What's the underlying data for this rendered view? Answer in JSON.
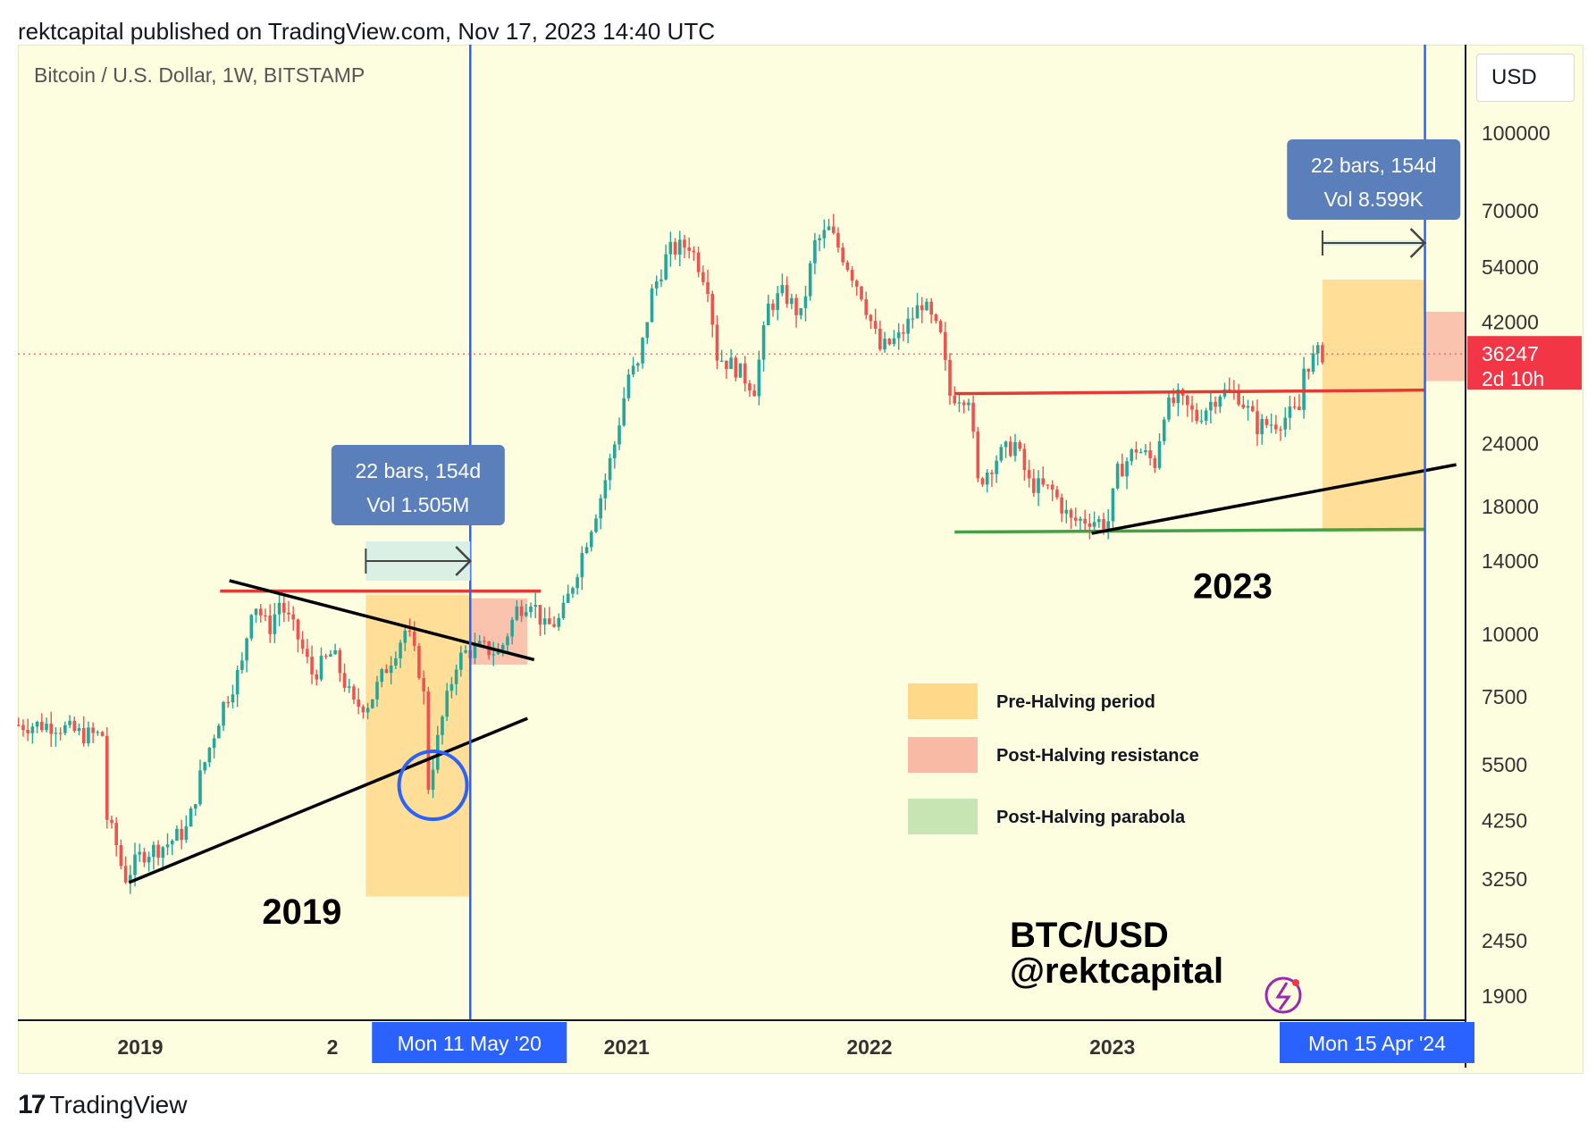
{
  "header": {
    "text": "rektcapital published on TradingView.com, Nov 17, 2023 14:40 UTC"
  },
  "footer": {
    "brand": "TradingView"
  },
  "toolbar": {
    "currency_button": "USD"
  },
  "colors": {
    "background": "#fdfde0",
    "up_candle": "#26a69a",
    "down_candle": "#ef5350",
    "halving_line": "#2962ff",
    "pre_halving": "#ffd88a",
    "post_resistance": "#f8b9a5",
    "post_parabola": "#c6e5b3",
    "resistance_line": "#e53935",
    "support_line": "#43a047",
    "trend_line": "#000000",
    "price_tag": "#f23645",
    "info_box": "#5b7fbb"
  },
  "chart_data": {
    "type": "candlestick",
    "title": "Bitcoin / U.S. Dollar, 1W, BITSTAMP",
    "y_scale": "log",
    "ylim": [
      1700,
      150000
    ],
    "y_ticks": [
      100000,
      70000,
      54000,
      42000,
      24000,
      18000,
      14000,
      10000,
      7500,
      5500,
      4250,
      3250,
      2450,
      1900
    ],
    "x_ticks": [
      "2019",
      "2021",
      "2022",
      "2023"
    ],
    "x_tick_partial": "2",
    "x_range": [
      "2018-07-01",
      "2024-06-15"
    ],
    "current_price": {
      "value": "36247",
      "countdown": "2d 10h",
      "level": 36247
    },
    "halving_markers": [
      {
        "date": "2020-05-11",
        "label": "Mon 11 May '20"
      },
      {
        "date": "2024-04-15",
        "label": "Mon 15 Apr '24"
      }
    ],
    "measure_boxes": [
      {
        "line1": "22 bars, 154d",
        "line2": "Vol 1.505M",
        "from": "2019-12-06",
        "to": "2020-05-11"
      },
      {
        "line1": "22 bars, 154d",
        "line2": "Vol 8.599K",
        "from": "2023-11-13",
        "to": "2024-04-15"
      }
    ],
    "zones": [
      {
        "kind": "pre_halving",
        "from": "2019-12-06",
        "to": "2020-05-11",
        "y_low": 3000,
        "y_high": 12000
      },
      {
        "kind": "post_resistance",
        "from": "2020-05-11",
        "to": "2020-08-05",
        "y_low": 8700,
        "y_high": 11800
      },
      {
        "kind": "pre_halving",
        "from": "2023-11-13",
        "to": "2024-04-15",
        "y_low": 16000,
        "y_high": 51000
      },
      {
        "kind": "post_resistance",
        "from": "2024-04-15",
        "to": "2024-06-15",
        "y_low": 32000,
        "y_high": 44000
      }
    ],
    "lines": [
      {
        "kind": "resistance",
        "from": [
          "2019-05-01",
          12200
        ],
        "to": [
          "2020-08-25",
          12200
        ]
      },
      {
        "kind": "trend",
        "from": [
          "2019-05-15",
          12800
        ],
        "to": [
          "2020-08-15",
          8900
        ]
      },
      {
        "kind": "trend",
        "from": [
          "2018-12-15",
          3200
        ],
        "to": [
          "2020-08-05",
          6800
        ]
      },
      {
        "kind": "resistance",
        "from": [
          "2022-05-09",
          30200
        ],
        "to": [
          "2024-04-15",
          30700
        ]
      },
      {
        "kind": "support",
        "from": [
          "2022-05-09",
          16000
        ],
        "to": [
          "2024-04-15",
          16200
        ]
      },
      {
        "kind": "trend",
        "from": [
          "2022-12-01",
          15900
        ],
        "to": [
          "2024-06-01",
          21800
        ]
      }
    ],
    "circle_marker": {
      "date": "2020-03-16",
      "price": 5000
    },
    "legend": [
      {
        "label": "Pre-Halving period",
        "kind": "pre_halving"
      },
      {
        "label": "Post-Halving resistance",
        "kind": "post_resistance"
      },
      {
        "label": "Post-Halving parabola",
        "kind": "post_parabola"
      }
    ],
    "annotations": [
      {
        "text": "2019",
        "date": "2019-09-01",
        "price": 2650
      },
      {
        "text": "2023",
        "date": "2023-07-01",
        "price": 11800
      }
    ],
    "watermark": {
      "line1": "BTC/USD",
      "line2": "@rektcapital"
    },
    "series_anchors": [
      [
        "2018-07-02",
        6600
      ],
      [
        "2018-09-01",
        6600
      ],
      [
        "2018-10-15",
        6300
      ],
      [
        "2018-11-12",
        6300
      ],
      [
        "2018-11-19",
        4300
      ],
      [
        "2018-12-03",
        3800
      ],
      [
        "2018-12-15",
        3250
      ],
      [
        "2019-01-10",
        3650
      ],
      [
        "2019-02-15",
        3800
      ],
      [
        "2019-03-20",
        4100
      ],
      [
        "2019-04-08",
        5200
      ],
      [
        "2019-05-12",
        7200
      ],
      [
        "2019-06-10",
        8700
      ],
      [
        "2019-06-26",
        11800
      ],
      [
        "2019-07-20",
        10200
      ],
      [
        "2019-08-05",
        11600
      ],
      [
        "2019-09-01",
        9900
      ],
      [
        "2019-09-24",
        8300
      ],
      [
        "2019-10-24",
        9200
      ],
      [
        "2019-11-25",
        7200
      ],
      [
        "2019-12-18",
        7300
      ],
      [
        "2020-01-15",
        8700
      ],
      [
        "2020-02-12",
        10300
      ],
      [
        "2020-03-08",
        8000
      ],
      [
        "2020-03-16",
        5000
      ],
      [
        "2020-04-06",
        6800
      ],
      [
        "2020-04-27",
        8800
      ],
      [
        "2020-05-11",
        9200
      ],
      [
        "2020-06-01",
        9400
      ],
      [
        "2020-07-01",
        9200
      ],
      [
        "2020-07-27",
        11200
      ],
      [
        "2020-08-17",
        11800
      ],
      [
        "2020-09-07",
        10300
      ],
      [
        "2020-10-01",
        10700
      ],
      [
        "2020-10-21",
        12900
      ],
      [
        "2020-11-09",
        15500
      ],
      [
        "2020-12-01",
        19000
      ],
      [
        "2020-12-21",
        24000
      ],
      [
        "2021-01-11",
        33000
      ],
      [
        "2021-01-25",
        34000
      ],
      [
        "2021-02-15",
        48000
      ],
      [
        "2021-03-12",
        58000
      ],
      [
        "2021-04-12",
        60000
      ],
      [
        "2021-05-10",
        50000
      ],
      [
        "2021-05-24",
        36000
      ],
      [
        "2021-06-21",
        34000
      ],
      [
        "2021-07-19",
        31000
      ],
      [
        "2021-08-09",
        45000
      ],
      [
        "2021-09-01",
        48000
      ],
      [
        "2021-09-27",
        43000
      ],
      [
        "2021-10-18",
        60000
      ],
      [
        "2021-11-08",
        64000
      ],
      [
        "2021-11-29",
        57000
      ],
      [
        "2021-12-27",
        48000
      ],
      [
        "2022-01-24",
        37000
      ],
      [
        "2022-02-21",
        39000
      ],
      [
        "2022-03-28",
        46000
      ],
      [
        "2022-04-25",
        39000
      ],
      [
        "2022-05-09",
        30000
      ],
      [
        "2022-06-06",
        30000
      ],
      [
        "2022-06-20",
        20000
      ],
      [
        "2022-07-18",
        22500
      ],
      [
        "2022-08-15",
        24000
      ],
      [
        "2022-09-05",
        20000
      ],
      [
        "2022-10-10",
        19300
      ],
      [
        "2022-11-07",
        16800
      ],
      [
        "2022-12-05",
        17000
      ],
      [
        "2023-01-01",
        16600
      ],
      [
        "2023-01-16",
        21000
      ],
      [
        "2023-02-13",
        23500
      ],
      [
        "2023-03-13",
        22000
      ],
      [
        "2023-03-27",
        28000
      ],
      [
        "2023-04-17",
        29500
      ],
      [
        "2023-05-15",
        27000
      ],
      [
        "2023-06-19",
        30500
      ],
      [
        "2023-07-17",
        30000
      ],
      [
        "2023-08-14",
        26000
      ],
      [
        "2023-09-11",
        26500
      ],
      [
        "2023-10-16",
        28000
      ],
      [
        "2023-10-23",
        34000
      ],
      [
        "2023-11-13",
        36247
      ]
    ]
  }
}
